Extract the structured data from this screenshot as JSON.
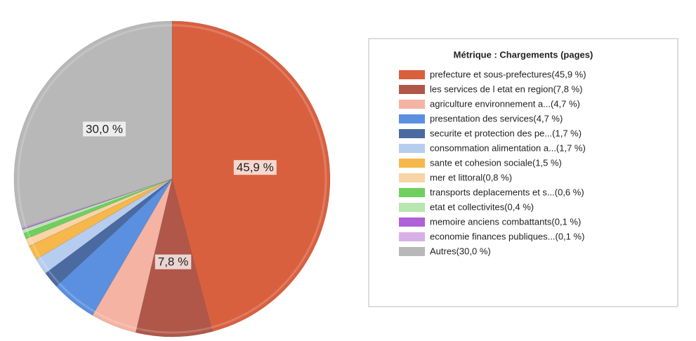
{
  "chart_data": {
    "type": "pie",
    "legend_title": "Métrique :  Chargements (pages)",
    "categories": [
      "prefecture et sous-prefectures(45,9 %)",
      "les services de l etat en region(7,8 %)",
      "agriculture  environnement  a...(4,7 %)",
      "presentation des services(4,7 %)",
      "securite et protection des pe...(1,7 %)",
      "consommation  alimentation  a...(1,7 %)",
      "sante et cohesion sociale(1,5 %)",
      "mer et littoral(0,8 %)",
      "transports  deplacements et s...(0,6 %)",
      "etat et collectivites(0,4 %)",
      "memoire  anciens combattants(0,1 %)",
      "economie   finances publiques...(0,1 %)",
      "Autres(30,0 %)"
    ],
    "values": [
      45.9,
      7.8,
      4.7,
      4.7,
      1.7,
      1.7,
      1.5,
      0.8,
      0.6,
      0.4,
      0.1,
      0.1,
      30.0
    ],
    "value_labels": [
      "45,9 %",
      "7,8 %",
      null,
      null,
      null,
      null,
      null,
      null,
      null,
      null,
      null,
      null,
      "30,0 %"
    ],
    "colors": [
      "#d9603f",
      "#b0574a",
      "#f4b3a3",
      "#5b8fe0",
      "#4a6aa0",
      "#b7cdf0",
      "#f6b84a",
      "#f8d4a6",
      "#6fcf5f",
      "#b8e6b0",
      "#b060d8",
      "#d8b0e8",
      "#b8b8b8"
    ],
    "legend": "right"
  }
}
